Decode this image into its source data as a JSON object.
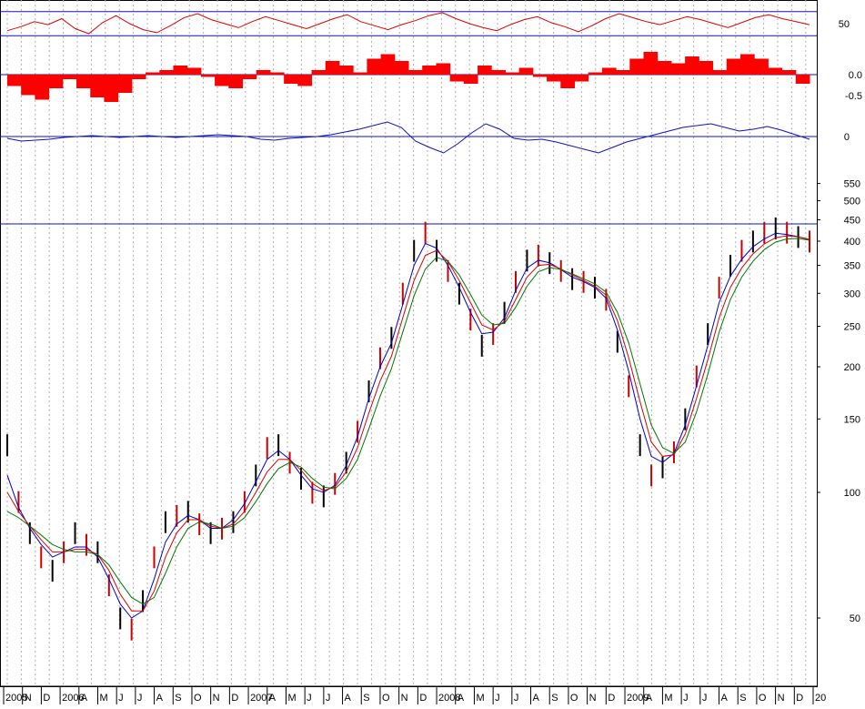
{
  "chart_data": [
    {
      "type": "line",
      "panel": "oscillator-1",
      "title": "",
      "y_ticks": [
        "50"
      ],
      "reference_lines": [
        62,
        38
      ],
      "series": [
        {
          "color": "#e00000",
          "values": [
            43,
            47,
            52,
            49,
            55,
            45,
            40,
            51,
            58,
            50,
            44,
            41,
            48,
            56,
            60,
            54,
            50,
            46,
            52,
            57,
            53,
            49,
            45,
            50,
            55,
            59,
            52,
            48,
            44,
            49,
            53,
            58,
            61,
            55,
            50,
            46,
            43,
            49,
            54,
            57,
            51,
            47,
            42,
            48,
            55,
            60,
            56,
            52,
            49,
            53,
            57,
            54,
            50,
            46,
            51,
            56,
            59,
            55,
            52,
            49
          ]
        }
      ]
    },
    {
      "type": "bar",
      "panel": "histogram",
      "title": "",
      "y_ticks": [
        "0.0",
        "-0.5"
      ],
      "zero_line": 0.0,
      "series": [
        {
          "color": "#ff0000",
          "values": [
            -0.25,
            -0.45,
            -0.55,
            -0.3,
            -0.1,
            -0.3,
            -0.5,
            -0.6,
            -0.4,
            -0.1,
            0.05,
            0.1,
            0.2,
            0.15,
            -0.05,
            -0.25,
            -0.3,
            -0.1,
            0.1,
            0.05,
            -0.2,
            -0.25,
            0.1,
            0.3,
            0.2,
            0.05,
            0.35,
            0.45,
            0.3,
            0.1,
            0.2,
            0.25,
            -0.15,
            -0.2,
            0.2,
            0.1,
            0.05,
            0.15,
            -0.05,
            -0.15,
            -0.3,
            -0.15,
            0.05,
            0.15,
            0.1,
            0.35,
            0.5,
            0.3,
            0.25,
            0.4,
            0.3,
            0.1,
            0.35,
            0.45,
            0.35,
            0.15,
            0.1,
            -0.2
          ]
        }
      ]
    },
    {
      "type": "line",
      "panel": "oscillator-2",
      "title": "",
      "y_ticks": [
        "0"
      ],
      "zero_line": 0,
      "series": [
        {
          "color": "#1010c0",
          "values": [
            -2,
            -5,
            -4,
            -3,
            -1,
            0,
            1,
            0,
            -1,
            0,
            1,
            0,
            -1,
            0,
            1,
            2,
            1,
            0,
            -3,
            -4,
            -2,
            -1,
            0,
            2,
            5,
            8,
            12,
            16,
            10,
            -5,
            -12,
            -18,
            -8,
            4,
            14,
            8,
            -2,
            -4,
            -3,
            -6,
            -10,
            -14,
            -18,
            -12,
            -6,
            -2,
            2,
            6,
            10,
            12,
            14,
            10,
            6,
            8,
            11,
            7,
            2,
            -3
          ]
        }
      ]
    },
    {
      "type": "line",
      "panel": "price",
      "title": "",
      "y_scale": "log",
      "ylim": [
        35,
        560
      ],
      "y_ticks": [
        "550",
        "500",
        "450",
        "400",
        "350",
        "300",
        "250",
        "200",
        "150",
        "100",
        "50"
      ],
      "reference_lines": [
        440
      ],
      "x_ticks": [
        "2005",
        "N",
        "D",
        "2006",
        "A",
        "M",
        "J",
        "J",
        "A",
        "S",
        "O",
        "N",
        "D",
        "2007",
        "A",
        "M",
        "J",
        "J",
        "A",
        "S",
        "O",
        "N",
        "D",
        "2008",
        "A",
        "M",
        "J",
        "J",
        "A",
        "S",
        "O",
        "N",
        "D",
        "2009",
        "A",
        "M",
        "J",
        "J",
        "A",
        "S",
        "O",
        "N",
        "D",
        "20"
      ],
      "price": [
        130,
        95,
        80,
        70,
        65,
        72,
        80,
        75,
        72,
        60,
        50,
        47,
        55,
        70,
        85,
        88,
        90,
        84,
        80,
        82,
        85,
        95,
        110,
        128,
        130,
        118,
        108,
        100,
        98,
        105,
        118,
        140,
        175,
        210,
        235,
        300,
        380,
        420,
        380,
        340,
        300,
        260,
        225,
        240,
        270,
        320,
        360,
        370,
        355,
        340,
        325,
        320,
        310,
        290,
        230,
        180,
        130,
        110,
        115,
        125,
        150,
        190,
        240,
        310,
        350,
        380,
        400,
        420,
        430,
        420,
        410,
        400
      ],
      "series": [
        {
          "name": "",
          "color": "#0000cc",
          "values": [
            110,
            92,
            82,
            75,
            70,
            72,
            74,
            74,
            70,
            62,
            54,
            50,
            52,
            62,
            76,
            84,
            88,
            86,
            82,
            82,
            86,
            94,
            106,
            120,
            126,
            120,
            110,
            102,
            100,
            104,
            116,
            136,
            168,
            200,
            228,
            282,
            350,
            395,
            385,
            350,
            310,
            270,
            240,
            242,
            262,
            305,
            345,
            360,
            355,
            342,
            328,
            320,
            310,
            292,
            245,
            195,
            150,
            122,
            118,
            124,
            145,
            180,
            225,
            285,
            330,
            362,
            388,
            405,
            418,
            415,
            410,
            403
          ]
        },
        {
          "name": "",
          "color": "#dd0000",
          "values": [
            100,
            90,
            83,
            77,
            72,
            72,
            73,
            73,
            71,
            65,
            57,
            52,
            52,
            58,
            70,
            80,
            86,
            86,
            83,
            82,
            84,
            90,
            100,
            112,
            120,
            120,
            113,
            105,
            101,
            103,
            112,
            128,
            155,
            185,
            212,
            262,
            322,
            370,
            380,
            358,
            322,
            285,
            252,
            245,
            257,
            290,
            328,
            350,
            352,
            343,
            332,
            322,
            312,
            297,
            258,
            210,
            165,
            132,
            122,
            123,
            138,
            168,
            208,
            262,
            310,
            345,
            373,
            394,
            408,
            412,
            410,
            404
          ]
        },
        {
          "name": "",
          "color": "#007700",
          "values": [
            90,
            87,
            83,
            79,
            75,
            73,
            72,
            72,
            71,
            67,
            61,
            56,
            54,
            56,
            64,
            74,
            82,
            85,
            84,
            82,
            83,
            87,
            95,
            105,
            114,
            118,
            115,
            108,
            103,
            102,
            108,
            120,
            142,
            170,
            198,
            242,
            296,
            343,
            366,
            358,
            332,
            298,
            266,
            252,
            254,
            278,
            312,
            338,
            346,
            342,
            334,
            325,
            316,
            302,
            270,
            228,
            182,
            145,
            128,
            124,
            132,
            156,
            192,
            242,
            290,
            328,
            358,
            382,
            398,
            405,
            406,
            402
          ]
        }
      ]
    }
  ]
}
